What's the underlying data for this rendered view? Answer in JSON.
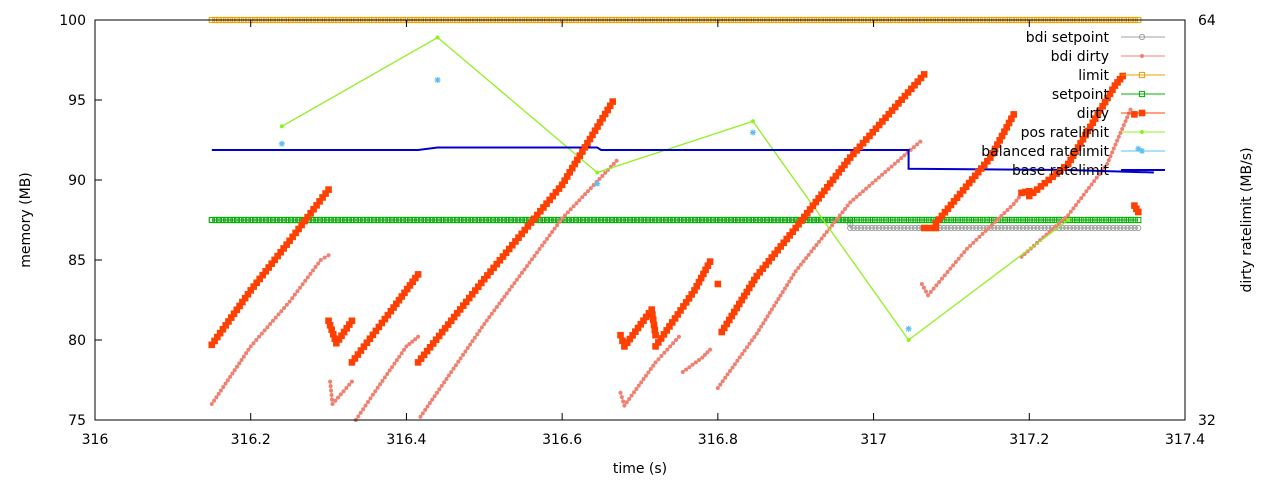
{
  "chart_data": {
    "type": "line",
    "xlabel": "time (s)",
    "ylabel": "memory (MB)",
    "y2label": "dirty ratelimit (MB/s)",
    "xlim": [
      316,
      317.4
    ],
    "ylim": [
      75,
      100
    ],
    "y2lim": [
      32,
      64
    ],
    "x_ticks": [
      316,
      316.2,
      316.4,
      316.6,
      316.8,
      317,
      317.2,
      317.4
    ],
    "x_tick_labels": [
      "316",
      "316.2",
      "316.4",
      "316.6",
      "316.8",
      "317",
      "317.2",
      "317.4"
    ],
    "y_ticks": [
      75,
      80,
      85,
      90,
      95,
      100
    ],
    "y_tick_labels": [
      "75",
      "80",
      "85",
      "90",
      "95",
      "100"
    ],
    "y2_ticks": [
      32,
      64
    ],
    "y2_tick_labels": [
      "32",
      "64"
    ],
    "grid": false,
    "legend_position": "top-right",
    "series": [
      {
        "name": "bdi setpoint",
        "color": "#a0a0a0",
        "marker": "circle",
        "axis": "left",
        "segments": [
          [
            [
              316.15,
              87.5
            ],
            [
              316.97,
              87.5
            ],
            [
              316.97,
              87.0
            ],
            [
              317.34,
              87.0
            ]
          ]
        ]
      },
      {
        "name": "bdi dirty",
        "color": "#f08070",
        "marker": "dot",
        "axis": "left",
        "segments": [
          [
            [
              316.15,
              76.0
            ],
            [
              316.2,
              79.6
            ],
            [
              316.25,
              82.4
            ],
            [
              316.29,
              85.0
            ],
            [
              316.3,
              85.3
            ]
          ],
          [
            [
              316.302,
              77.4
            ],
            [
              316.305,
              76.0
            ],
            [
              316.33,
              77.4
            ]
          ],
          [
            [
              316.335,
              75.0
            ],
            [
              316.36,
              76.8
            ],
            [
              316.4,
              79.6
            ],
            [
              316.415,
              80.2
            ]
          ],
          [
            [
              316.418,
              75.2
            ],
            [
              316.5,
              81.0
            ],
            [
              316.6,
              87.6
            ],
            [
              316.67,
              91.2
            ]
          ],
          [
            [
              316.675,
              76.7
            ],
            [
              316.68,
              75.9
            ],
            [
              316.72,
              78.6
            ],
            [
              316.75,
              80.2
            ]
          ],
          [
            [
              316.755,
              78.0
            ],
            [
              316.78,
              78.9
            ],
            [
              316.79,
              79.4
            ]
          ],
          [
            [
              316.8,
              77.0
            ],
            [
              316.85,
              80.4
            ],
            [
              316.9,
              84.3
            ],
            [
              316.97,
              88.6
            ],
            [
              317.06,
              92.4
            ]
          ],
          [
            [
              317.062,
              83.5
            ],
            [
              317.07,
              82.8
            ],
            [
              317.12,
              85.7
            ],
            [
              317.18,
              88.5
            ],
            [
              317.19,
              89.1
            ]
          ],
          [
            [
              317.19,
              85.2
            ],
            [
              317.25,
              87.8
            ],
            [
              317.3,
              91.0
            ],
            [
              317.33,
              94.4
            ]
          ]
        ]
      },
      {
        "name": "limit",
        "color": "#e8a000",
        "marker": "square-open",
        "axis": "left",
        "segments": [
          [
            [
              316.15,
              100.0
            ],
            [
              317.34,
              100.0
            ]
          ]
        ]
      },
      {
        "name": "setpoint",
        "color": "#00b000",
        "marker": "square-open",
        "axis": "left",
        "segments": [
          [
            [
              316.15,
              87.5
            ],
            [
              317.34,
              87.5
            ]
          ]
        ]
      },
      {
        "name": "dirty",
        "color": "#ff4000",
        "marker": "square",
        "axis": "left",
        "segments": [
          [
            [
              316.15,
              79.7
            ],
            [
              316.2,
              83.1
            ],
            [
              316.25,
              86.2
            ],
            [
              316.3,
              89.4
            ]
          ],
          [
            [
              316.3,
              81.2
            ],
            [
              316.31,
              79.8
            ],
            [
              316.33,
              81.2
            ]
          ],
          [
            [
              316.33,
              78.6
            ],
            [
              316.38,
              81.8
            ],
            [
              316.415,
              84.1
            ]
          ],
          [
            [
              316.415,
              78.6
            ],
            [
              316.5,
              83.8
            ],
            [
              316.6,
              89.7
            ],
            [
              316.665,
              94.9
            ]
          ],
          [
            [
              316.675,
              80.3
            ],
            [
              316.68,
              79.6
            ],
            [
              316.715,
              81.9
            ],
            [
              316.72,
              80.3
            ]
          ],
          [
            [
              316.72,
              79.6
            ],
            [
              316.77,
              83.1
            ],
            [
              316.79,
              84.9
            ]
          ],
          [
            [
              316.8,
              83.5
            ]
          ],
          [
            [
              316.805,
              80.5
            ],
            [
              316.85,
              84.0
            ],
            [
              316.9,
              87.0
            ],
            [
              316.97,
              91.4
            ],
            [
              317.065,
              96.6
            ]
          ],
          [
            [
              317.065,
              87.0
            ],
            [
              317.08,
              87.0
            ]
          ],
          [
            [
              317.08,
              87.3
            ],
            [
              317.15,
              91.4
            ],
            [
              317.18,
              94.1
            ]
          ],
          [
            [
              317.19,
              89.2
            ],
            [
              317.2,
              89.3
            ]
          ],
          [
            [
              317.2,
              89.0
            ],
            [
              317.25,
              91.0
            ],
            [
              317.31,
              95.9
            ],
            [
              317.32,
              96.5
            ]
          ],
          [
            [
              317.335,
              94.1
            ]
          ],
          [
            [
              317.335,
              88.4
            ],
            [
              317.34,
              88.0
            ]
          ]
        ]
      },
      {
        "name": "pos ratelimit",
        "color": "#90f020",
        "marker": "dot",
        "axis": "right",
        "segments": [
          [
            [
              316.24,
              55.5
            ],
            [
              316.44,
              62.6
            ],
            [
              316.645,
              51.8
            ],
            [
              316.845,
              55.9
            ],
            [
              317.045,
              38.4
            ],
            [
              317.25,
              48.0
            ]
          ]
        ]
      },
      {
        "name": "balanced ratelimit",
        "color": "#60c0f0",
        "marker": "star",
        "axis": "right",
        "segments": [
          [
            [
              316.24
            ],
            [
              54.1
            ]
          ]
        ],
        "points": [
          [
            316.24,
            54.1
          ],
          [
            316.44,
            59.2
          ],
          [
            316.645,
            50.9
          ],
          [
            316.845,
            55.0
          ],
          [
            317.045,
            39.3
          ],
          [
            317.34,
            53.7
          ]
        ]
      },
      {
        "name": "base ratelimit",
        "color": "#0000d0",
        "marker": "none",
        "axis": "right",
        "step": true,
        "points": [
          [
            316.15,
            53.6
          ],
          [
            316.415,
            53.6
          ],
          [
            316.44,
            53.8
          ],
          [
            316.645,
            53.8
          ],
          [
            316.65,
            53.6
          ],
          [
            317.045,
            53.6
          ],
          [
            317.045,
            52.1
          ],
          [
            317.25,
            52.0
          ],
          [
            317.36,
            51.8
          ]
        ]
      }
    ]
  }
}
